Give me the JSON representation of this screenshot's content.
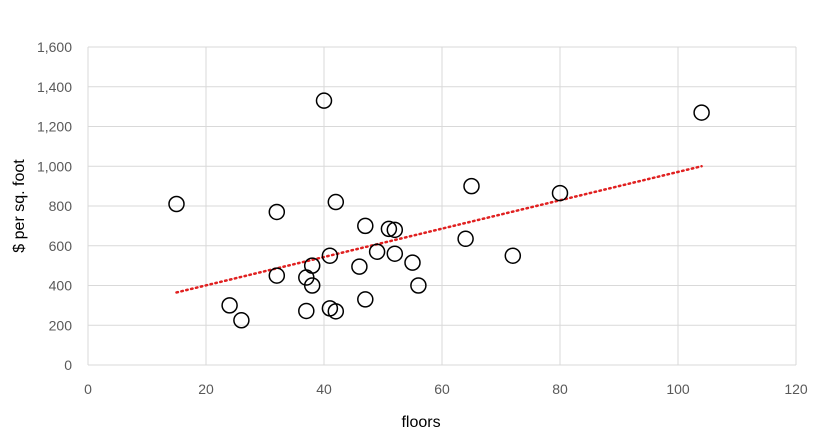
{
  "chart_data": {
    "type": "scatter",
    "xlabel": "floors",
    "ylabel": "$ per sq. foot",
    "xlim": [
      0,
      120
    ],
    "ylim": [
      0,
      1600
    ],
    "x_ticks": [
      0,
      20,
      40,
      60,
      80,
      100,
      120
    ],
    "y_ticks": [
      0,
      200,
      400,
      600,
      800,
      1000,
      1200,
      1400,
      1600
    ],
    "y_tick_labels": [
      "0",
      "200",
      "400",
      "600",
      "800",
      "1,000",
      "1,200",
      "1,400",
      "1,600"
    ],
    "grid": true,
    "legend": "none",
    "marker": "open-circle",
    "marker_color": "#000000",
    "trendline": {
      "type": "linear",
      "style": "dotted",
      "color": "#e02020",
      "from": [
        15,
        365
      ],
      "to": [
        104,
        1000
      ]
    },
    "series": [
      {
        "points": [
          [
            15,
            810
          ],
          [
            24,
            300
          ],
          [
            26,
            225
          ],
          [
            32,
            770
          ],
          [
            32,
            450
          ],
          [
            37,
            440
          ],
          [
            37,
            272
          ],
          [
            38,
            500
          ],
          [
            38,
            400
          ],
          [
            40,
            1330
          ],
          [
            41,
            550
          ],
          [
            41,
            285
          ],
          [
            42,
            820
          ],
          [
            42,
            270
          ],
          [
            46,
            495
          ],
          [
            47,
            700
          ],
          [
            47,
            330
          ],
          [
            49,
            570
          ],
          [
            51,
            685
          ],
          [
            52,
            680
          ],
          [
            52,
            560
          ],
          [
            55,
            515
          ],
          [
            56,
            400
          ],
          [
            64,
            635
          ],
          [
            65,
            900
          ],
          [
            72,
            550
          ],
          [
            80,
            865
          ],
          [
            104,
            1270
          ]
        ]
      }
    ]
  }
}
